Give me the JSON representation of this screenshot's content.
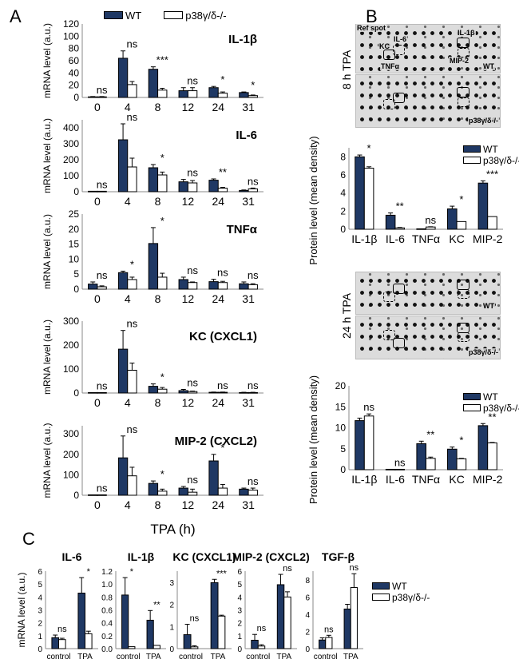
{
  "panels": {
    "a": "A",
    "b": "B",
    "c": "C"
  },
  "legend": {
    "wt": "WT",
    "ko": "p38γ/δ-/-"
  },
  "colors": {
    "wt": "#1f3864",
    "ko": "#ffffff"
  },
  "blots": {
    "ref_spot": "Ref spot",
    "il6": "IL-6",
    "kc": "KC",
    "tnfa": "TNFα",
    "il1b": "IL-1β",
    "mip2": "MIP-2",
    "wt": "WT",
    "ko": "p38γ/δ-/-",
    "time_8h": "8 h TPA",
    "time_24h": "24 h TPA"
  },
  "chart_data": [
    {
      "type": "bar",
      "panel": "A",
      "title": "IL-1β",
      "ylabel": "mRNA level (a.u.)",
      "categories": [
        "0",
        "4",
        "8",
        "12",
        "24",
        "31"
      ],
      "ylim": [
        0,
        120
      ],
      "yticks": [
        "0",
        "20",
        "40",
        "60",
        "80",
        "100",
        "120"
      ],
      "series": [
        {
          "name": "WT",
          "values": [
            1,
            64,
            46,
            11,
            16,
            8
          ],
          "errors": [
            0.5,
            12,
            4,
            5,
            2,
            1
          ]
        },
        {
          "name": "p38γ/δ-/-",
          "values": [
            1,
            21,
            12,
            11,
            7,
            3
          ],
          "errors": [
            0.5,
            5,
            3,
            5,
            2,
            1
          ]
        }
      ],
      "significance": [
        "ns",
        "ns",
        "***",
        "ns",
        "*",
        "*"
      ]
    },
    {
      "type": "bar",
      "panel": "A",
      "title": "IL-6",
      "ylabel": "mRNA level (a.u.)",
      "categories": [
        "0",
        "4",
        "8",
        "12",
        "24",
        "31"
      ],
      "ylim": [
        0,
        450
      ],
      "yticks": [
        "0",
        "100",
        "200",
        "300",
        "400"
      ],
      "series": [
        {
          "name": "WT",
          "values": [
            3,
            325,
            150,
            62,
            72,
            8
          ],
          "errors": [
            0,
            100,
            20,
            15,
            8,
            3
          ]
        },
        {
          "name": "p38γ/δ-/-",
          "values": [
            3,
            155,
            105,
            55,
            22,
            18
          ],
          "errors": [
            0,
            55,
            18,
            15,
            5,
            5
          ]
        }
      ],
      "significance": [
        "ns",
        "ns",
        "*",
        "ns",
        "**",
        "ns"
      ]
    },
    {
      "type": "bar",
      "panel": "A",
      "title": "TNFα",
      "ylabel": "mRNA level (a.u.)",
      "categories": [
        "0",
        "4",
        "8",
        "12",
        "24",
        "31"
      ],
      "ylim": [
        0,
        25
      ],
      "yticks": [
        "0",
        "5",
        "10",
        "15",
        "20",
        "25"
      ],
      "series": [
        {
          "name": "WT",
          "values": [
            1.7,
            5.5,
            15.2,
            3.2,
            2.5,
            1.8
          ],
          "errors": [
            0.7,
            0.5,
            5.3,
            0.8,
            0.8,
            0.6
          ]
        },
        {
          "name": "p38γ/δ-/-",
          "values": [
            0.8,
            3.2,
            4.0,
            2.2,
            2.2,
            1.5
          ],
          "errors": [
            0.3,
            0.8,
            1.3,
            0.2,
            0.4,
            0.3
          ]
        }
      ],
      "significance": [
        "ns",
        "*",
        "*",
        "ns",
        "ns",
        "ns"
      ]
    },
    {
      "type": "bar",
      "panel": "A",
      "title": "KC (CXCL1)",
      "ylabel": "mRNA level (a.u.)",
      "categories": [
        "0",
        "4",
        "8",
        "12",
        "24",
        "31"
      ],
      "ylim": [
        0,
        300
      ],
      "yticks": [
        "0",
        "100",
        "200",
        "300"
      ],
      "series": [
        {
          "name": "WT",
          "values": [
            2,
            183,
            28,
            10,
            3,
            2
          ],
          "errors": [
            0,
            78,
            10,
            5,
            1,
            1
          ]
        },
        {
          "name": "p38γ/δ-/-",
          "values": [
            2,
            95,
            16,
            6,
            3,
            2
          ],
          "errors": [
            0,
            30,
            7,
            2,
            1,
            1
          ]
        }
      ],
      "significance": [
        "ns",
        "ns",
        "*",
        "ns",
        "ns",
        "ns"
      ]
    },
    {
      "type": "bar",
      "panel": "A",
      "title": "MIP-2 (CXCL2)",
      "ylabel": "mRNA level (a.u.)",
      "xlabel": "TPA (h)",
      "categories": [
        "0",
        "4",
        "8",
        "12",
        "24",
        "31"
      ],
      "ylim": [
        0,
        340
      ],
      "yticks": [
        "0",
        "100",
        "200",
        "300"
      ],
      "series": [
        {
          "name": "WT",
          "values": [
            2,
            183,
            58,
            35,
            168,
            30
          ],
          "errors": [
            0,
            107,
            12,
            8,
            32,
            5
          ]
        },
        {
          "name": "p38γ/δ-/-",
          "values": [
            2,
            95,
            20,
            15,
            35,
            25
          ],
          "errors": [
            0,
            42,
            10,
            15,
            18,
            10
          ]
        }
      ],
      "significance": [
        "ns",
        "ns",
        "*",
        "ns",
        "*",
        "ns"
      ]
    },
    {
      "type": "bar",
      "panel": "B",
      "title": "",
      "ylabel": "Protein level (mean density)",
      "categories": [
        "IL-1β",
        "IL-6",
        "TNFα",
        "KC",
        "MIP-2"
      ],
      "ylim": [
        0,
        9
      ],
      "yticks": [
        "0",
        "2",
        "4",
        "6",
        "8"
      ],
      "series": [
        {
          "name": "WT",
          "values": [
            8.0,
            1.55,
            0.05,
            2.25,
            5.1
          ],
          "errors": [
            0.2,
            0.25,
            0,
            0.3,
            0.25
          ]
        },
        {
          "name": "p38γ/δ-/-",
          "values": [
            6.75,
            0.15,
            0.25,
            0.85,
            1.4
          ],
          "errors": [
            0.15,
            0.05,
            0.03,
            0,
            0
          ]
        }
      ],
      "significance": [
        "*",
        "**",
        "ns",
        "*",
        "***"
      ]
    },
    {
      "type": "bar",
      "panel": "B",
      "title": "",
      "ylabel": "Protein level (mean density)",
      "categories": [
        "IL-1β",
        "IL-6",
        "TNFα",
        "KC",
        "MIP-2"
      ],
      "ylim": [
        0,
        20
      ],
      "yticks": [
        "0",
        "5",
        "10",
        "15",
        "20"
      ],
      "series": [
        {
          "name": "WT",
          "values": [
            11.7,
            0.1,
            6.2,
            4.9,
            10.5
          ],
          "errors": [
            0.6,
            0,
            0.6,
            0.5,
            0.5
          ]
        },
        {
          "name": "p38γ/δ-/-",
          "values": [
            12.8,
            0.1,
            2.7,
            2.6,
            6.4
          ],
          "errors": [
            0.5,
            0,
            0.3,
            0.1,
            0.1
          ]
        }
      ],
      "significance": [
        "ns",
        "ns",
        "**",
        "*",
        "**"
      ]
    },
    {
      "type": "bar",
      "panel": "C",
      "title": "IL-6",
      "ylabel": "mRNA level (a.u.)",
      "categories": [
        "control",
        "TPA"
      ],
      "ylim": [
        0,
        6
      ],
      "yticks": [
        "0",
        "1",
        "2",
        "3",
        "4",
        "5",
        "6"
      ],
      "series": [
        {
          "name": "WT",
          "values": [
            0.85,
            4.3
          ],
          "errors": [
            0.2,
            1.2
          ]
        },
        {
          "name": "p38γ/δ-/-",
          "values": [
            0.7,
            1.15
          ],
          "errors": [
            0.1,
            0.2
          ]
        }
      ],
      "significance": [
        "ns",
        "*"
      ]
    },
    {
      "type": "bar",
      "panel": "C",
      "title": "IL-1β",
      "ylabel": "",
      "categories": [
        "control",
        "TPA"
      ],
      "ylim": [
        0,
        1.2
      ],
      "yticks": [
        "0.0",
        "0.2",
        "0.4",
        "0.6",
        "0.8",
        "1.0",
        "1.2"
      ],
      "series": [
        {
          "name": "WT",
          "values": [
            0.83,
            0.44
          ],
          "errors": [
            0.27,
            0.15
          ]
        },
        {
          "name": "p38γ/δ-/-",
          "values": [
            0.03,
            0.05
          ],
          "errors": [
            0,
            0
          ]
        }
      ],
      "significance": [
        "*",
        "**"
      ]
    },
    {
      "type": "bar",
      "panel": "C",
      "title": "KC (CXCL1)",
      "ylabel": "",
      "categories": [
        "control",
        "TPA"
      ],
      "ylim": [
        0,
        3.5
      ],
      "yticks": [
        "0",
        "1",
        "2",
        "3"
      ],
      "series": [
        {
          "name": "WT",
          "values": [
            0.63,
            2.98
          ],
          "errors": [
            0.47,
            0.15
          ]
        },
        {
          "name": "p38γ/δ-/-",
          "values": [
            0.08,
            1.47
          ],
          "errors": [
            0.05,
            0.04
          ]
        }
      ],
      "significance": [
        "ns",
        "***"
      ]
    },
    {
      "type": "bar",
      "panel": "C",
      "title": "MIP-2 (CXCL2)",
      "ylabel": "",
      "categories": [
        "control",
        "TPA"
      ],
      "ylim": [
        0,
        6
      ],
      "yticks": [
        "0",
        "1",
        "2",
        "3",
        "4",
        "5",
        "6"
      ],
      "series": [
        {
          "name": "WT",
          "values": [
            0.65,
            4.95
          ],
          "errors": [
            0.45,
            0.8
          ]
        },
        {
          "name": "p38γ/δ-/-",
          "values": [
            0.2,
            4.0
          ],
          "errors": [
            0.1,
            0.4
          ]
        }
      ],
      "significance": [
        "ns",
        "ns"
      ]
    },
    {
      "type": "bar",
      "panel": "C",
      "title": "TGF-β",
      "ylabel": "",
      "categories": [
        "control",
        "TPA"
      ],
      "ylim": [
        0,
        9
      ],
      "yticks": [
        "0",
        "2",
        "4",
        "6",
        "8"
      ],
      "series": [
        {
          "name": "WT",
          "values": [
            1.0,
            4.6
          ],
          "errors": [
            0.25,
            0.55
          ]
        },
        {
          "name": "p38γ/δ-/-",
          "values": [
            1.3,
            7.1
          ],
          "errors": [
            0.25,
            1.6
          ]
        }
      ],
      "significance": [
        "ns",
        "ns"
      ]
    }
  ]
}
